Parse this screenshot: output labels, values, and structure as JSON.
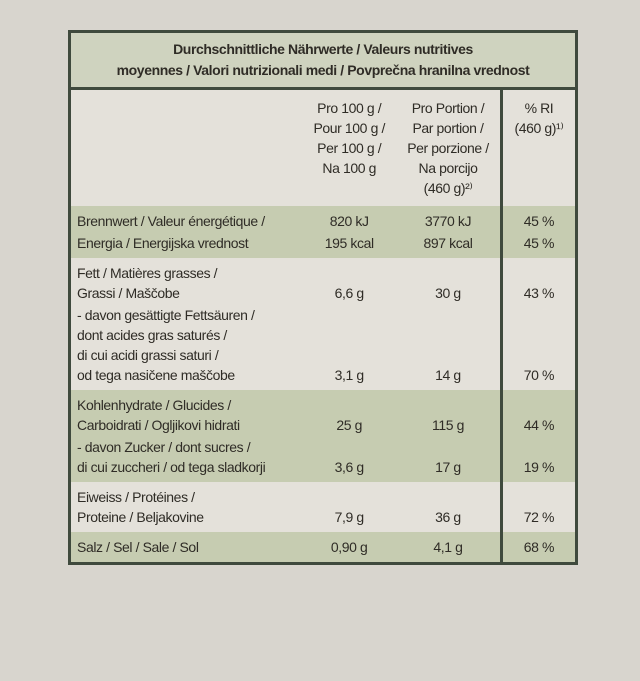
{
  "title": [
    "Durchschnittliche Nährwerte / Valeurs nutritives",
    "moyennes / Valori nutrizionali medi / Povprečna hranilna vrednost"
  ],
  "columns": [
    [
      "Pro 100 g /",
      "Pour 100 g /",
      "Per 100 g /",
      "Na 100 g"
    ],
    [
      "Pro Portion /",
      "Par portion /",
      "Per porzione /",
      "Na porcijo",
      "(460 g)²⁾"
    ],
    [
      "% RI",
      "(460 g)¹⁾"
    ]
  ],
  "groups": [
    [
      {
        "label": [
          "Brennwert / Valeur énergétique /"
        ],
        "values": [
          "820 kJ",
          "3770 kJ",
          "45 %"
        ]
      },
      {
        "label": [
          "Energia / Energijska vrednost"
        ],
        "values": [
          "195 kcal",
          "897 kcal",
          "45 %"
        ]
      }
    ],
    [
      {
        "label": [
          "Fett / Matières grasses /",
          "Grassi / Maščobe"
        ],
        "values": [
          "6,6 g",
          "30 g",
          "43 %"
        ]
      },
      {
        "label": [
          "- davon gesättigte Fettsäuren /",
          "dont acides gras saturés /",
          "di cui acidi grassi saturi /",
          "od tega nasičene maščobe"
        ],
        "values": [
          "3,1 g",
          "14 g",
          "70 %"
        ]
      }
    ],
    [
      {
        "label": [
          "Kohlenhydrate / Glucides /",
          "Carboidrati / Ogljikovi hidrati"
        ],
        "values": [
          "25 g",
          "115 g",
          "44 %"
        ]
      },
      {
        "label": [
          "- davon Zucker / dont sucres /",
          "di cui zuccheri / od tega sladkorji"
        ],
        "values": [
          "3,6 g",
          "17 g",
          "19 %"
        ]
      }
    ],
    [
      {
        "label": [
          "Eiweiss / Protéines /",
          "Proteine / Beljakovine"
        ],
        "values": [
          "7,9 g",
          "36 g",
          "72 %"
        ]
      }
    ],
    [
      {
        "label": [
          "Salz / Sel / Sale / Sol"
        ],
        "values": [
          "0,90 g",
          "4,1 g",
          "68 %"
        ]
      }
    ]
  ]
}
